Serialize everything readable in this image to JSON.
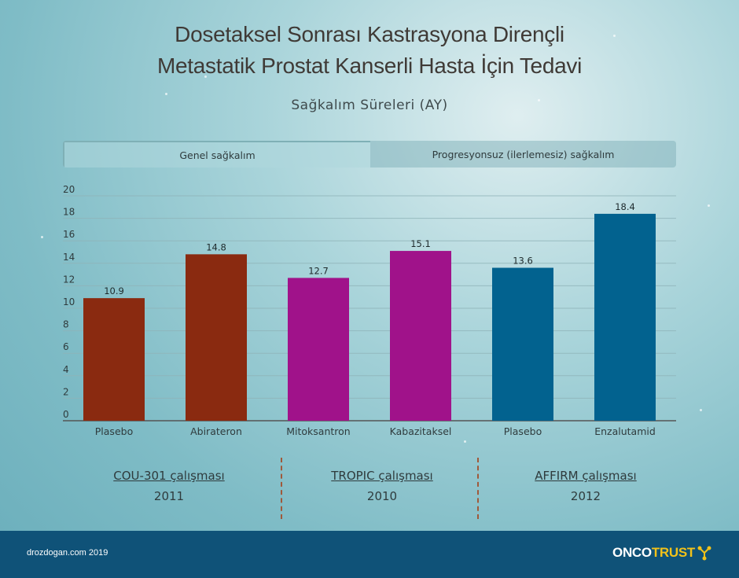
{
  "title_line1": "Dosetaksel Sonrası Kastrasyona Dirençli",
  "title_line2": "Metastatik Prostat Kanserli Hasta İçin Tedavi",
  "subtitle": "Sağkalım Süreleri (AY)",
  "tabs": {
    "active_label": "Genel sağkalım",
    "inactive_label": "Progresyonsuz (ilerlemesiz) sağkalım"
  },
  "chart_data": {
    "type": "bar",
    "title": "Sağkalım Süreleri (AY)",
    "categories": [
      "Plasebo",
      "Abirateron",
      "Mitoksantron",
      "Kabazitaksel",
      "Plasebo",
      "Enzalutamid"
    ],
    "values": [
      10.9,
      14.8,
      12.7,
      15.1,
      13.6,
      18.4
    ],
    "value_labels": [
      "10.9",
      "14.8",
      "12.7",
      "15.1",
      "13.6",
      "18.4"
    ],
    "bar_colors": [
      "#8a2a10",
      "#8a2a10",
      "#a0128a",
      "#a0128a",
      "#02628f",
      "#02628f"
    ],
    "ylim": [
      0,
      20
    ],
    "yticks": [
      0,
      2,
      4,
      6,
      8,
      10,
      12,
      14,
      16,
      18,
      20
    ],
    "grid": true
  },
  "studies": [
    {
      "name": "COU-301 çalışması",
      "year": "2011"
    },
    {
      "name": "TROPIC çalışması",
      "year": "2010"
    },
    {
      "name": "AFFIRM çalışması",
      "year": "2012"
    }
  ],
  "footer": {
    "credit": "drozdogan.com 2019",
    "logo_part1": "ONCO",
    "logo_part2": "TRUST",
    "logo_icon": "molecule-icon"
  },
  "colors": {
    "brown": "#8a2a10",
    "magenta": "#a0128a",
    "blue": "#02628f",
    "footer": "#0f5278",
    "logo_accent": "#f2c21a"
  }
}
